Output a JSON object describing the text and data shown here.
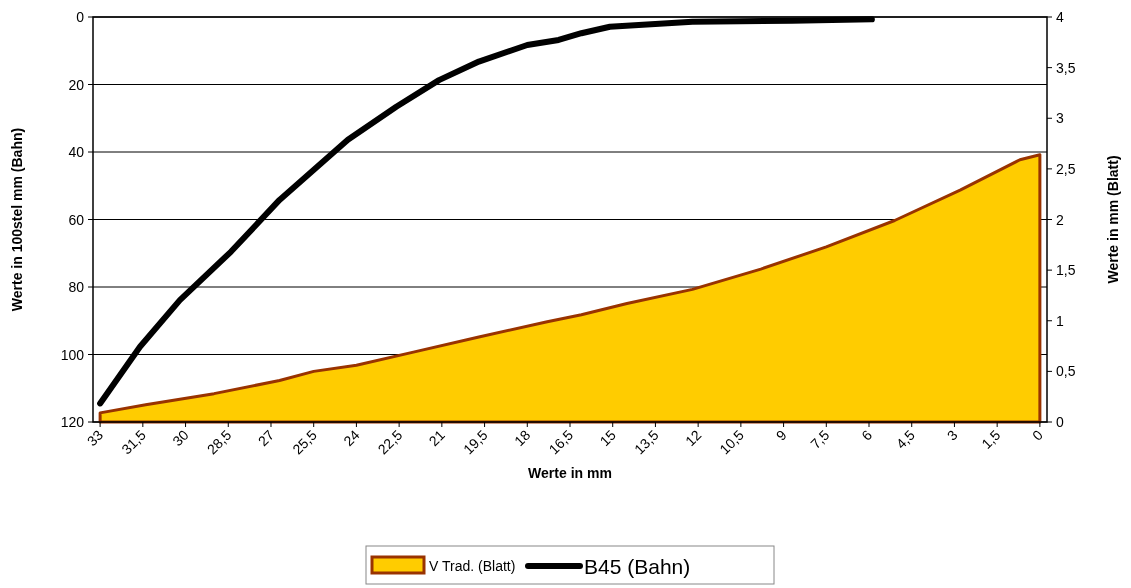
{
  "chart_data": {
    "type": "line",
    "xlabel": "Werte in mm",
    "ylabel": "Werte in 100stel mm (Bahn)",
    "y2label": "Werte in mm (Blatt)",
    "xlim": [
      33.25,
      -0.25
    ],
    "xticks": [
      33,
      {
        "value": 31.5,
        "label": "31,5"
      },
      30,
      {
        "value": 28.5,
        "label": "28,5"
      },
      27,
      {
        "value": 25.5,
        "label": "25,5"
      },
      24,
      {
        "value": 22.5,
        "label": "22,5"
      },
      21,
      {
        "value": 19.5,
        "label": "19,5"
      },
      18,
      {
        "value": 16.5,
        "label": "16,5"
      },
      15,
      {
        "value": 13.5,
        "label": "13,5"
      },
      12,
      {
        "value": 10.5,
        "label": "10,5"
      },
      9,
      {
        "value": 7.5,
        "label": "7,5"
      },
      6,
      {
        "value": 4.5,
        "label": "4,5"
      },
      3,
      {
        "value": 1.5,
        "label": "1,5"
      },
      0
    ],
    "ylim": [
      120,
      0
    ],
    "yticks": [
      0,
      20,
      40,
      60,
      80,
      100,
      120
    ],
    "y2lim": [
      0,
      4
    ],
    "y2ticks": [
      0,
      {
        "value": 0.5,
        "label": "0,5"
      },
      1,
      {
        "value": 1.5,
        "label": "1,5"
      },
      2,
      {
        "value": 2.5,
        "label": "2,5"
      },
      3,
      {
        "value": 3.5,
        "label": "3,5"
      },
      4
    ],
    "grid": "y",
    "legend": "bottom",
    "series": [
      {
        "name": "V Trad. (Blatt)",
        "type": "area",
        "axis": "y2",
        "color": "#ffcc00",
        "x": [
          33,
          31.4,
          29.0,
          26.7,
          25.5,
          24.0,
          22.0,
          19.7,
          17.3,
          16.1,
          14.5,
          12.2,
          9.8,
          7.5,
          5.1,
          2.8,
          0.7,
          0
        ],
        "values": [
          0.09,
          0.17,
          0.28,
          0.41,
          0.5,
          0.56,
          0.69,
          0.84,
          0.99,
          1.06,
          1.17,
          1.31,
          1.51,
          1.73,
          1.99,
          2.29,
          2.59,
          2.64
        ]
      },
      {
        "name": "B45 (Bahn)",
        "color": "#000000",
        "x": [
          33,
          31.6,
          30.2,
          28.4,
          26.7,
          24.3,
          22.6,
          21.1,
          19.7,
          18.0,
          16.9,
          16.1,
          15.1,
          12.2,
          8.7,
          5.9
        ],
        "values": [
          114.5,
          97.7,
          83.9,
          69.5,
          54.2,
          36.4,
          26.6,
          18.7,
          13.2,
          8.3,
          6.8,
          4.8,
          2.9,
          1.4,
          1.1,
          0.7
        ]
      }
    ]
  }
}
